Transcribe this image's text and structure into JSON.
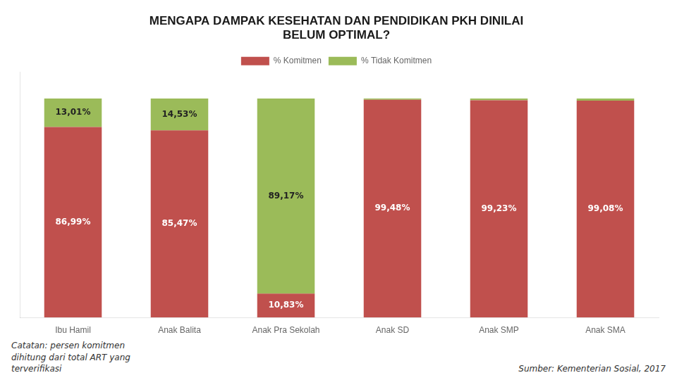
{
  "chart_data": {
    "type": "bar",
    "stacked": true,
    "title": [
      "MENGAPA DAMPAK KESEHATAN DAN PENDIDIKAN PKH DINILAI",
      "BELUM OPTIMAL?"
    ],
    "categories": [
      "Ibu Hamil",
      "Anak Balita",
      "Anak Pra Sekolah",
      "Anak SD",
      "Anak SMP",
      "Anak SMA"
    ],
    "series": [
      {
        "name": "% Komitmen",
        "color": "#c0504d",
        "values": [
          86.99,
          85.47,
          10.83,
          99.48,
          99.23,
          99.08
        ],
        "value_labels": [
          "86,99%",
          "85,47%",
          "10,83%",
          "99,48%",
          "99,23%",
          "99,08%"
        ]
      },
      {
        "name": "% Tidak Komitmen",
        "color": "#9bbb59",
        "values": [
          13.01,
          14.53,
          89.17,
          0.52,
          0.77,
          0.92
        ],
        "value_labels": [
          "13,01%",
          "14,53%",
          "89,17%",
          null,
          null,
          null
        ]
      }
    ],
    "data_labels": true,
    "ylim": [
      0,
      112
    ],
    "yticks": [],
    "tick_labels": "x",
    "grid": false,
    "legend": "top",
    "annotations": [
      "Catatan: persen komitmen\ndihitung dari total ART yang\nterverifikasi",
      "Sumber: Kementerian Sosial, 2017"
    ]
  }
}
